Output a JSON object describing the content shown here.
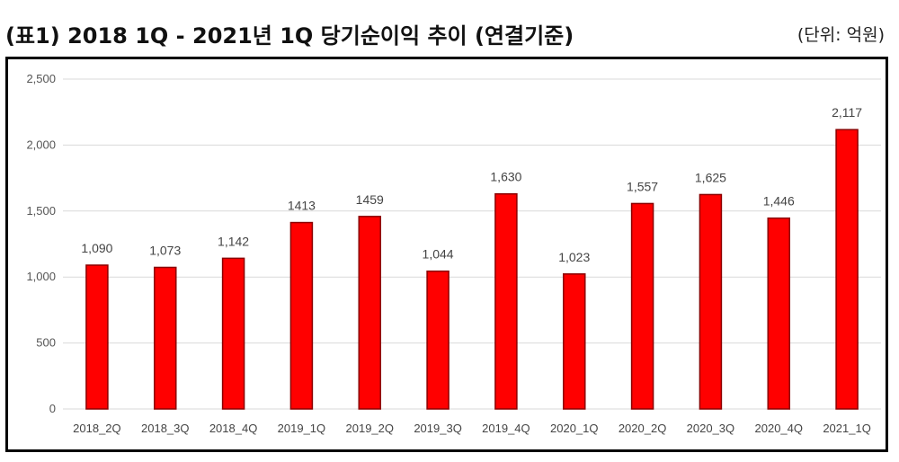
{
  "header": {
    "title": "(표1) 2018 1Q - 2021년 1Q 당기순이익 추이 (연결기준)",
    "unit": "(단위: 억원)"
  },
  "colors": {
    "bar_fill": "#ff0000",
    "bar_stroke": "#8b0000",
    "grid": "#d9d9d9",
    "frame": "#000000"
  },
  "chart_data": {
    "type": "bar",
    "categories": [
      "2018_2Q",
      "2018_3Q",
      "2018_4Q",
      "2019_1Q",
      "2019_2Q",
      "2019_3Q",
      "2019_4Q",
      "2020_1Q",
      "2020_2Q",
      "2020_3Q",
      "2020_4Q",
      "2021_1Q"
    ],
    "values": [
      1090,
      1073,
      1142,
      1413,
      1459,
      1044,
      1630,
      1023,
      1557,
      1625,
      1446,
      2117
    ],
    "data_labels": [
      "1,090",
      "1,073",
      "1,142",
      "1413",
      "1459",
      "1,044",
      "1,630",
      "1,023",
      "1,557",
      "1,625",
      "1,446",
      "2,117"
    ],
    "y_ticks": [
      0,
      500,
      1000,
      1500,
      2000,
      2500
    ],
    "y_tick_labels": [
      "0",
      "500",
      "1,000",
      "1,500",
      "2,000",
      "2,500"
    ],
    "ylim": [
      0,
      2500
    ],
    "grid": true,
    "legend": "none"
  }
}
